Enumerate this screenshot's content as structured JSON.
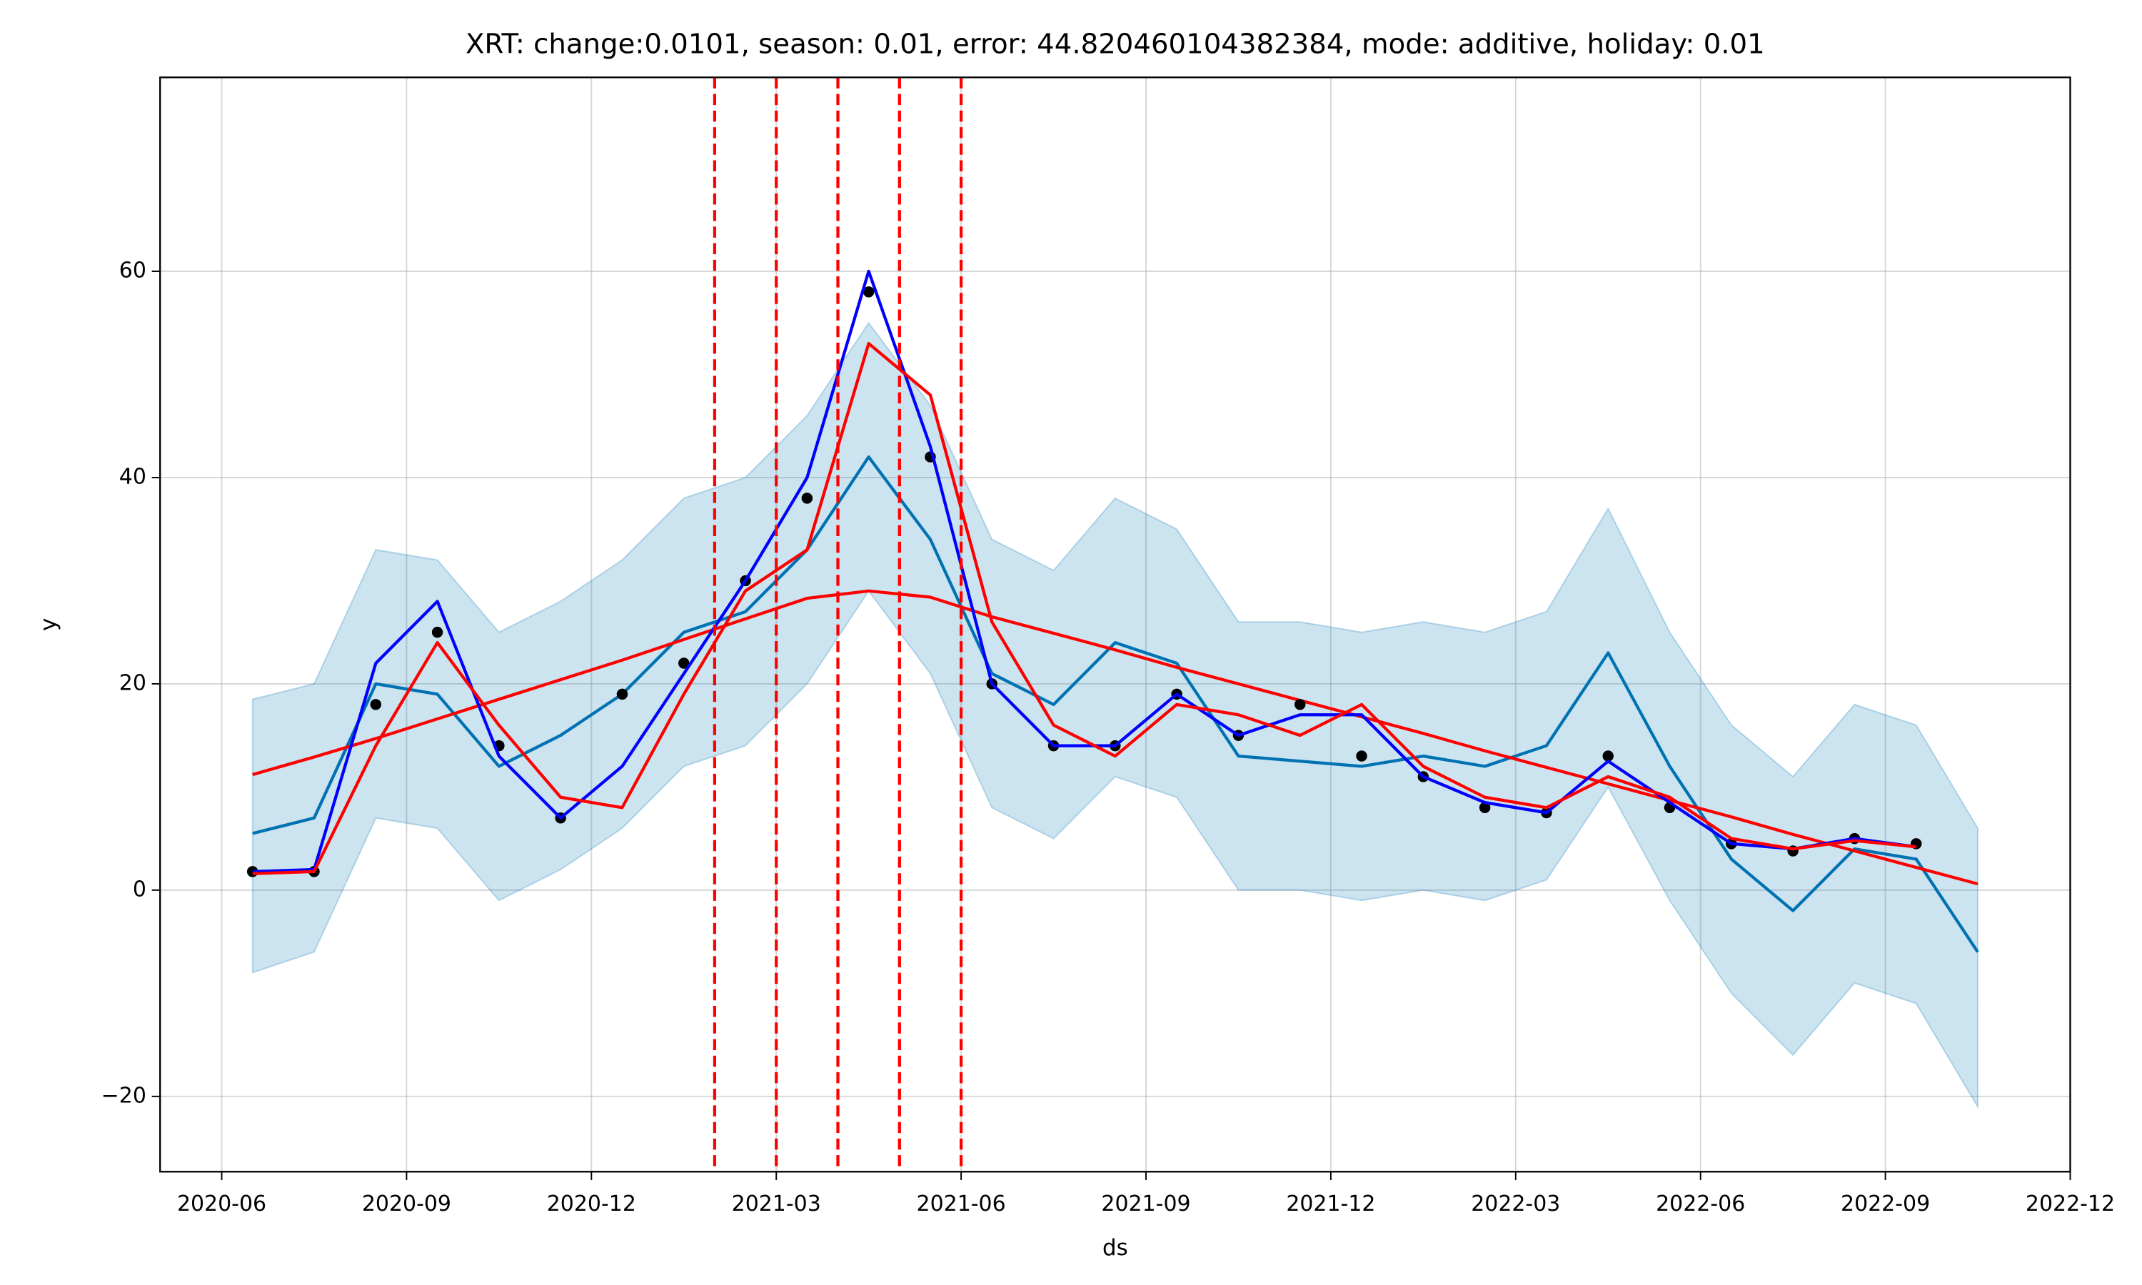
{
  "chart_data": {
    "type": "line",
    "title": "XRT: change:0.0101, season: 0.01, error: 44.820460104382384, mode: additive, holiday: 0.01",
    "x_label": "ds",
    "y_label": "y",
    "x": [
      "2020-06",
      "2020-07",
      "2020-08",
      "2020-09",
      "2020-10",
      "2020-11",
      "2020-12",
      "2021-01",
      "2021-02",
      "2021-03",
      "2021-04",
      "2021-05",
      "2021-06",
      "2021-07",
      "2021-08",
      "2021-09",
      "2021-10",
      "2021-11",
      "2021-12",
      "2022-01",
      "2022-02",
      "2022-03",
      "2022-04",
      "2022-05",
      "2022-06",
      "2022-07",
      "2022-08",
      "2022-09",
      "2022-10"
    ],
    "series": [
      {
        "kind": "band",
        "color": "#0072b2",
        "upper": [
          18.5,
          20,
          33,
          32,
          25,
          28,
          32,
          38,
          40,
          46,
          55,
          47,
          34,
          31,
          38,
          35,
          26,
          26,
          25,
          26,
          25,
          27,
          37,
          25,
          16,
          11,
          18,
          16,
          6
        ],
        "lower": [
          -8,
          -6,
          7,
          6,
          -1,
          2,
          6,
          12,
          14,
          20,
          29,
          21,
          8,
          5,
          11,
          9,
          0,
          0,
          -1,
          0,
          -1,
          1,
          10,
          -1,
          -10,
          -16,
          -9,
          -11,
          -21
        ]
      },
      {
        "kind": "line",
        "color": "#0072b2",
        "values": [
          5.5,
          7,
          20,
          19,
          12,
          15,
          19,
          25,
          27,
          33,
          42,
          34,
          21,
          18,
          24,
          22,
          13,
          12.5,
          12,
          13,
          12,
          14,
          23,
          12,
          3,
          -2,
          4,
          3,
          -6
        ]
      },
      {
        "kind": "line",
        "color": "#ff0000",
        "values": [
          11.2,
          12.9,
          14.7,
          16.6,
          18.5,
          20.4,
          22.3,
          24.3,
          26.3,
          28.3,
          29,
          28.4,
          26.5,
          24.9,
          23.3,
          21.6,
          20,
          18.4,
          16.8,
          15.2,
          13.5,
          11.9,
          10.3,
          8.7,
          7.1,
          5.4,
          3.8,
          2.2,
          0.6
        ]
      },
      {
        "kind": "points",
        "color": "#000000",
        "values": [
          1.8,
          1.8,
          18,
          25,
          14,
          7,
          19,
          22,
          30,
          38,
          58,
          42,
          20,
          14,
          14,
          19,
          15,
          18,
          13,
          11,
          8,
          7.5,
          13,
          8,
          4.5,
          3.8,
          5,
          4.5,
          null
        ]
      },
      {
        "kind": "line",
        "color": "#0000ff",
        "values": [
          1.8,
          2,
          22,
          28,
          13,
          7,
          12,
          21,
          30,
          40,
          60,
          43,
          20,
          14,
          14,
          19,
          15,
          17,
          17,
          11,
          8.5,
          7.5,
          12.5,
          8.5,
          4.5,
          4,
          5,
          4.2,
          null
        ]
      },
      {
        "kind": "line",
        "color": "#ff0000",
        "values": [
          1.6,
          1.8,
          14,
          24,
          16,
          9,
          8,
          19,
          29,
          33,
          53,
          48,
          26,
          16,
          13,
          18,
          17,
          15,
          18,
          12,
          9,
          8,
          11,
          9,
          5,
          4,
          4.8,
          4.2,
          null
        ]
      }
    ],
    "changepoints": [
      "2021-02",
      "2021-03",
      "2021-04",
      "2021-05",
      "2021-06"
    ],
    "changepoint_color": "#ff0000",
    "xlim": [
      "2020-05",
      "2022-12"
    ],
    "xticks": [
      "2020-06",
      "2020-09",
      "2020-12",
      "2021-03",
      "2021-06",
      "2021-09",
      "2021-12",
      "2022-03",
      "2022-06",
      "2022-09",
      "2022-12"
    ],
    "ylim": [
      -27.3,
      78.8
    ],
    "yticks": [
      {
        "value": -20,
        "label": "−20"
      },
      0,
      20,
      40,
      60
    ],
    "grid": true
  }
}
